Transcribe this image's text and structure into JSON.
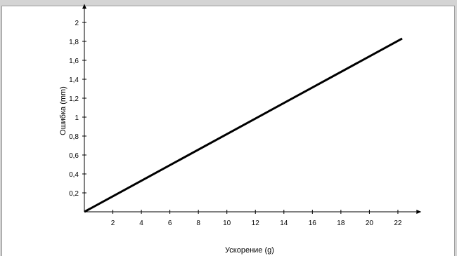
{
  "chart_data": {
    "type": "line",
    "title": "",
    "xlabel": "Ускорение (g)",
    "ylabel": "Ошибка (mm)",
    "x_ticks": [
      "2",
      "4",
      "6",
      "8",
      "10",
      "12",
      "14",
      "16",
      "18",
      "20",
      "22"
    ],
    "y_ticks": [
      "0,2",
      "0,4",
      "0,6",
      "0,8",
      "1",
      "1,2",
      "1,4",
      "1,6",
      "1,8",
      "2"
    ],
    "xlim": [
      0,
      23.3
    ],
    "ylim": [
      0,
      2.1
    ],
    "grid": false,
    "series": [
      {
        "x": [
          0,
          22.3
        ],
        "y": [
          0,
          1.83
        ],
        "color": "#000000"
      }
    ]
  }
}
